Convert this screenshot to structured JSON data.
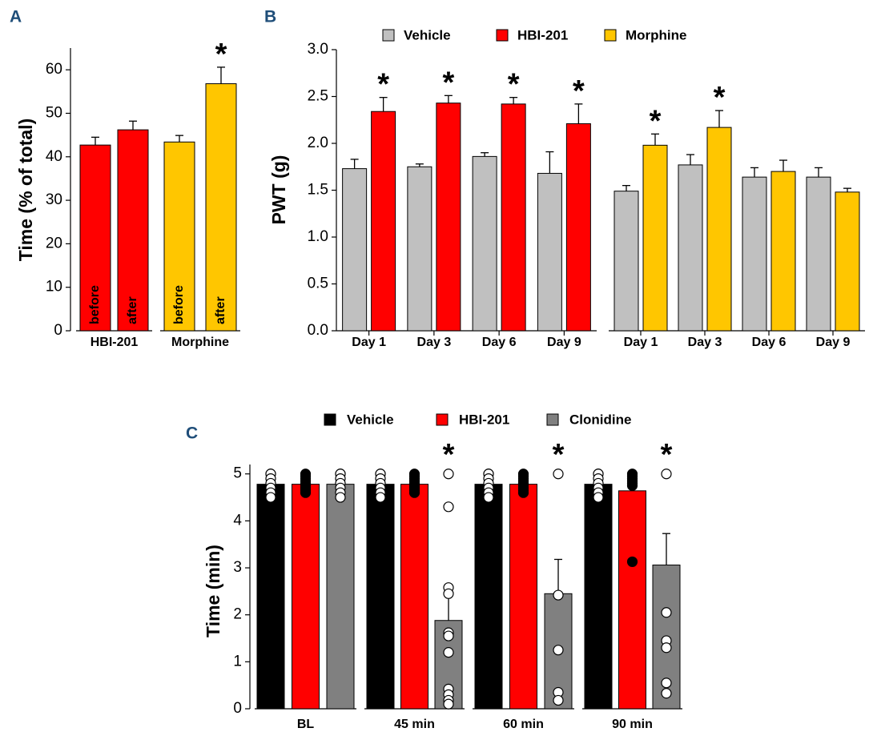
{
  "chart_data": [
    {
      "type": "bar",
      "panel": "A",
      "ylabel": "Time (% of total)",
      "ylim": [
        0,
        65
      ],
      "yticks": [
        0,
        10,
        20,
        30,
        40,
        50,
        60
      ],
      "groups": [
        {
          "name": "HBI-201",
          "color": "#ff0000",
          "categories": [
            "before",
            "after"
          ],
          "values": [
            42.7,
            46.2
          ],
          "errors": [
            1.8,
            2.0
          ],
          "stars": [
            null,
            null
          ]
        },
        {
          "name": "Morphine",
          "color": "#ffc600",
          "categories": [
            "before",
            "after"
          ],
          "values": [
            43.4,
            56.8
          ],
          "errors": [
            1.5,
            3.8
          ],
          "stars": [
            null,
            "*"
          ]
        }
      ]
    },
    {
      "type": "bar",
      "panel": "B",
      "ylabel": "PWT (g)",
      "ylim": [
        0,
        3
      ],
      "yticks": [
        {
          "value": 0,
          "label": "0.0"
        },
        0.5,
        {
          "value": 1,
          "label": "1.0"
        },
        1.5,
        {
          "value": 2,
          "label": "2.0"
        },
        2.5,
        {
          "value": 3,
          "label": "3.0"
        }
      ],
      "groups": [
        {
          "categories": [
            "Day 1",
            "Day 3",
            "Day 6",
            "Day 9"
          ],
          "series": [
            {
              "name": "Vehicle",
              "color": "#c0c0c0",
              "values": [
                1.73,
                1.75,
                1.86,
                1.68
              ],
              "errors": [
                0.1,
                0.03,
                0.04,
                0.23
              ],
              "stars": [
                null,
                null,
                null,
                null
              ]
            },
            {
              "name": "HBI-201",
              "color": "#ff0000",
              "values": [
                2.34,
                2.43,
                2.42,
                2.21
              ],
              "errors": [
                0.15,
                0.08,
                0.07,
                0.21
              ],
              "stars": [
                "*",
                "*",
                "*",
                "*"
              ]
            }
          ]
        },
        {
          "categories": [
            "Day 1",
            "Day 3",
            "Day 6",
            "Day 9"
          ],
          "series": [
            {
              "name": "Vehicle",
              "color": "#c0c0c0",
              "values": [
                1.49,
                1.77,
                1.64,
                1.64
              ],
              "errors": [
                0.06,
                0.11,
                0.1,
                0.1
              ],
              "stars": [
                null,
                null,
                null,
                null
              ]
            },
            {
              "name": "Morphine",
              "color": "#ffc600",
              "values": [
                1.98,
                2.17,
                1.7,
                1.48
              ],
              "errors": [
                0.12,
                0.18,
                0.12,
                0.04
              ],
              "stars": [
                "*",
                "*",
                null,
                null
              ]
            }
          ]
        }
      ]
    },
    {
      "type": "bar",
      "panel": "C",
      "ylabel": "Time (min)",
      "ylim": [
        0,
        5.2
      ],
      "yticks": [
        0,
        1,
        2,
        3,
        4,
        5
      ],
      "categories": [
        "BL",
        "45 min",
        "60 min",
        "90 min"
      ],
      "series": [
        {
          "name": "Vehicle",
          "color": "#000000",
          "point_color": "#ffffff",
          "values": [
            4.78,
            4.78,
            4.78,
            4.78
          ],
          "stars": [
            null,
            null,
            null,
            null
          ],
          "points": [
            [
              5,
              5,
              4.9,
              4.8,
              4.7,
              4.6,
              4.5
            ],
            [
              5,
              5,
              4.9,
              4.8,
              4.7,
              4.6,
              4.5
            ],
            [
              5,
              5,
              4.9,
              4.8,
              4.7,
              4.6,
              4.5
            ],
            [
              5,
              5,
              4.9,
              4.8,
              4.7,
              4.6,
              4.5
            ]
          ]
        },
        {
          "name": "HBI-201",
          "color": "#ff0000",
          "point_color": "#000000",
          "values": [
            4.78,
            4.78,
            4.78,
            4.64
          ],
          "stars": [
            null,
            null,
            null,
            null
          ],
          "points": [
            [
              5,
              4.95,
              4.9,
              4.85,
              4.8,
              4.75,
              4.7,
              4.65,
              4.6
            ],
            [
              5,
              4.95,
              4.9,
              4.85,
              4.8,
              4.75,
              4.7,
              4.65,
              4.6
            ],
            [
              5,
              4.95,
              4.9,
              4.85,
              4.8,
              4.75,
              4.7,
              4.65,
              4.6
            ],
            [
              5,
              4.95,
              4.9,
              4.85,
              4.8,
              4.75,
              3.13
            ]
          ]
        },
        {
          "name": "Clonidine",
          "color": "#808080",
          "point_color": "#ffffff",
          "values": [
            4.78,
            1.88,
            2.45,
            3.06
          ],
          "errors": [
            0,
            0.52,
            0.73,
            0.67
          ],
          "stars": [
            null,
            "*",
            "*",
            "*"
          ],
          "points": [
            [
              5,
              5,
              4.9,
              4.8,
              4.7,
              4.6,
              4.5
            ],
            [
              5,
              4.3,
              2.58,
              2.45,
              1.62,
              1.55,
              1.2,
              0.42,
              0.3,
              0.18,
              0.1
            ],
            [
              5,
              2.42,
              1.25,
              0.35,
              0.18
            ],
            [
              5,
              2.05,
              1.45,
              1.3,
              0.55,
              0.33
            ]
          ]
        }
      ]
    }
  ]
}
